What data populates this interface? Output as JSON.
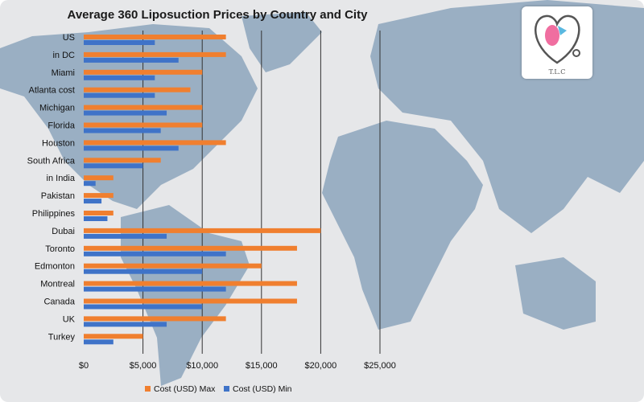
{
  "chart_data": {
    "type": "bar",
    "orientation": "horizontal",
    "title": "Average 360 Liposuction Prices by Country and City",
    "categories": [
      "US",
      "in DC",
      "Miami",
      "Atlanta cost",
      "Michigan",
      "Florida",
      "Houston",
      "South Africa",
      "in India",
      "Pakistan",
      "Philippines",
      "Dubai",
      "Toronto",
      "Edmonton",
      "Montreal",
      "Canada",
      "UK",
      "Turkey"
    ],
    "series": [
      {
        "name": "Cost (USD) Max",
        "color": "#f07f2f",
        "values": [
          12000,
          12000,
          10000,
          9000,
          10000,
          10000,
          12000,
          6500,
          2500,
          2500,
          2500,
          20000,
          18000,
          15000,
          18000,
          18000,
          12000,
          5000
        ]
      },
      {
        "name": "Cost (USD) Min",
        "color": "#3f73c8",
        "values": [
          6000,
          8000,
          6000,
          6000,
          7000,
          6500,
          8000,
          5000,
          1000,
          1500,
          2000,
          7000,
          12000,
          10000,
          12000,
          10000,
          7000,
          2500
        ]
      }
    ],
    "xlim": [
      0,
      25000
    ],
    "xticks": [
      0,
      5000,
      10000,
      15000,
      20000,
      25000
    ],
    "xtick_labels": [
      "$0",
      "$5,000",
      "$10,000",
      "$15,000",
      "$20,000",
      "$25,000"
    ],
    "grid": "vertical major",
    "legend": "bottom"
  },
  "logo": {
    "text": "T.L.C"
  }
}
